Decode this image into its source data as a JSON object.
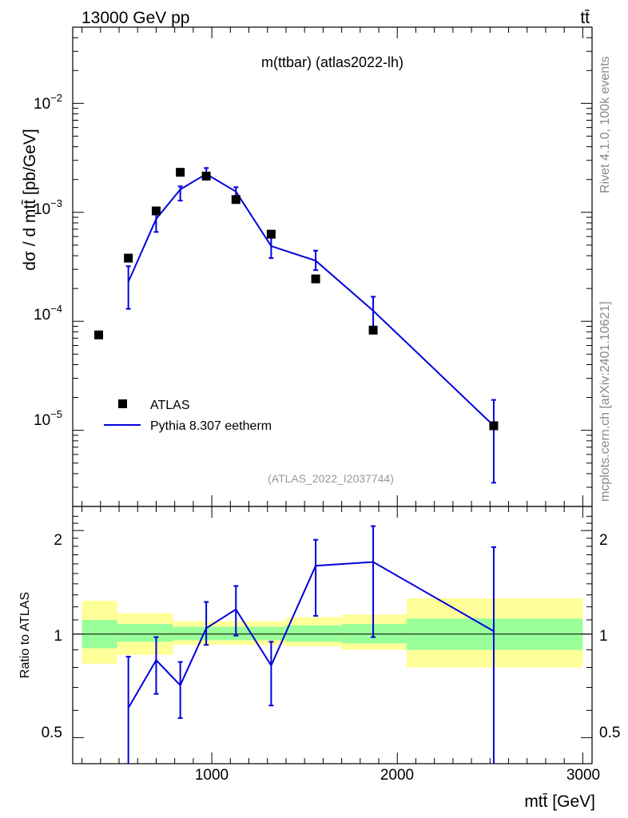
{
  "header": {
    "beam_label": "13000 GeV pp",
    "process_label": "tt̄"
  },
  "side_labels": {
    "rivet": "Rivet 4.1.0,  100k events",
    "source": "mcplots.cern.ch [arXiv:2401.10621]"
  },
  "main_panel": {
    "title": "m(ttbar) (atlas2022-lh)",
    "analysis_id": "(ATLAS_2022_I2037744)",
    "ylabel": "dσ / d mtt̄ [pb/GeV]",
    "legend": {
      "data_label": "ATLAS",
      "mc_label": "Pythia 8.307 eetherm"
    }
  },
  "ratio_panel": {
    "ylabel": "Ratio to ATLAS",
    "ytick_labels": [
      "2",
      "1",
      "0.5"
    ]
  },
  "x_axis": {
    "label": "mtt̄ [GeV]",
    "tick_labels": [
      "1000",
      "2000",
      "3000"
    ]
  },
  "colors": {
    "mc_line": "#0000dd",
    "band_inner": "#99ff99",
    "band_outer": "#ffff99",
    "data_marker": "#000000"
  },
  "chart_data": [
    {
      "type": "line",
      "title": "m(ttbar) (atlas2022-lh)",
      "xlabel": "mtt̄ [GeV]",
      "ylabel": "dσ / d mtt̄ [pb/GeV]",
      "yscale": "log",
      "xlim": [
        250,
        3050
      ],
      "ylim": [
        2e-06,
        0.05
      ],
      "legend_position": "lower-left",
      "data_points": {
        "name": "ATLAS",
        "x": [
          390,
          550,
          700,
          830,
          970,
          1130,
          1320,
          1560,
          1870,
          2520
        ],
        "y": [
          7.5e-05,
          0.00038,
          0.00103,
          0.00233,
          0.00215,
          0.00131,
          0.00063,
          0.000245,
          8.3e-05,
          1.1e-05
        ]
      },
      "series": [
        {
          "name": "Pythia 8.307 eetherm",
          "x": [
            550,
            700,
            830,
            970,
            1130,
            1320,
            1560,
            1870,
            2520
          ],
          "y": [
            0.00023,
            0.00087,
            0.00162,
            0.00225,
            0.00155,
            0.00049,
            0.00036,
            0.000125,
            1.1e-05
          ],
          "err_low": [
            0.00013,
            0.00066,
            0.00128,
            0.002,
            0.00136,
            0.00038,
            0.000295,
            8.5e-05,
            3.3e-06
          ],
          "err_high": [
            0.00032,
            0.00109,
            0.00173,
            0.00255,
            0.0017,
            0.0006,
            0.000445,
            0.000168,
            1.9e-05
          ]
        }
      ]
    },
    {
      "type": "line",
      "title": "Ratio to ATLAS",
      "xlabel": "mtt̄ [GeV]",
      "ylabel": "Ratio to ATLAS",
      "yscale": "log",
      "xlim": [
        250,
        3050
      ],
      "ylim": [
        0.42,
        2.35
      ],
      "yticks": [
        2,
        1,
        0.5
      ],
      "series": [
        {
          "name": "Pythia 8.307 eetherm / ATLAS",
          "x": [
            550,
            700,
            830,
            970,
            1130,
            1320,
            1560,
            1870,
            2520
          ],
          "y": [
            0.61,
            0.84,
            0.71,
            1.04,
            1.18,
            0.81,
            1.58,
            1.62,
            1.02
          ],
          "err_low": [
            0.4,
            0.67,
            0.57,
            0.93,
            0.99,
            0.62,
            1.13,
            0.98,
            0.4
          ],
          "err_high": [
            0.86,
            0.98,
            0.83,
            1.24,
            1.38,
            0.95,
            1.88,
            2.06,
            1.79
          ]
        }
      ],
      "bands": {
        "bins": [
          [
            300,
            490
          ],
          [
            490,
            790
          ],
          [
            790,
            1400
          ],
          [
            1400,
            1700
          ],
          [
            1700,
            2050
          ],
          [
            2050,
            3000
          ]
        ],
        "inner_low": [
          0.91,
          0.95,
          0.96,
          0.95,
          0.94,
          0.9
        ],
        "inner_high": [
          1.1,
          1.07,
          1.05,
          1.06,
          1.07,
          1.11
        ],
        "outer_low": [
          0.82,
          0.87,
          0.93,
          0.92,
          0.9,
          0.8
        ],
        "outer_high": [
          1.25,
          1.15,
          1.09,
          1.12,
          1.14,
          1.27
        ]
      }
    }
  ]
}
